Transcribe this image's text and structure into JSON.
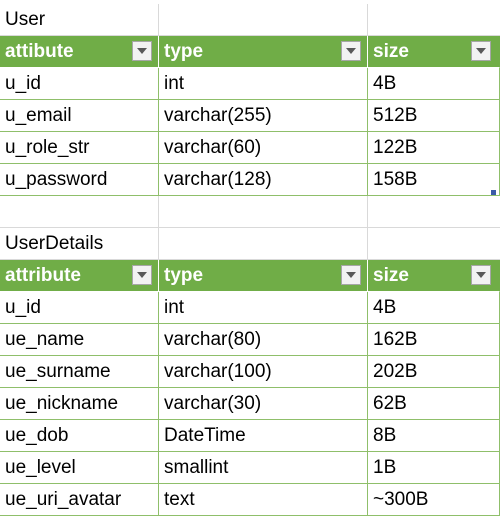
{
  "tables": [
    {
      "title": "User",
      "headers": [
        "attibute",
        "type",
        "size"
      ],
      "rows": [
        [
          "u_id",
          "int",
          "4B"
        ],
        [
          "u_email",
          "varchar(255)",
          "512B"
        ],
        [
          "u_role_str",
          "varchar(60)",
          "122B"
        ],
        [
          "u_password",
          "varchar(128)",
          "158B"
        ]
      ]
    },
    {
      "title": "UserDetails",
      "headers": [
        "attribute",
        "type",
        "size"
      ],
      "rows": [
        [
          "u_id",
          "int",
          "4B"
        ],
        [
          "ue_name",
          "varchar(80)",
          "162B"
        ],
        [
          "ue_surname",
          "varchar(100)",
          "202B"
        ],
        [
          "ue_nickname",
          "varchar(30)",
          "62B"
        ],
        [
          "ue_dob",
          "DateTime",
          "8B"
        ],
        [
          "ue_level",
          "smallint",
          "1B"
        ],
        [
          "ue_uri_avatar",
          "text",
          "~300B"
        ]
      ]
    }
  ],
  "colors": {
    "header_bg": "#70ad47",
    "header_text": "#ffffff",
    "row_border": "#8fbf6a",
    "grid_line": "#d9d9d9"
  },
  "icons": {
    "filter_dropdown": "chevron-down-icon"
  }
}
